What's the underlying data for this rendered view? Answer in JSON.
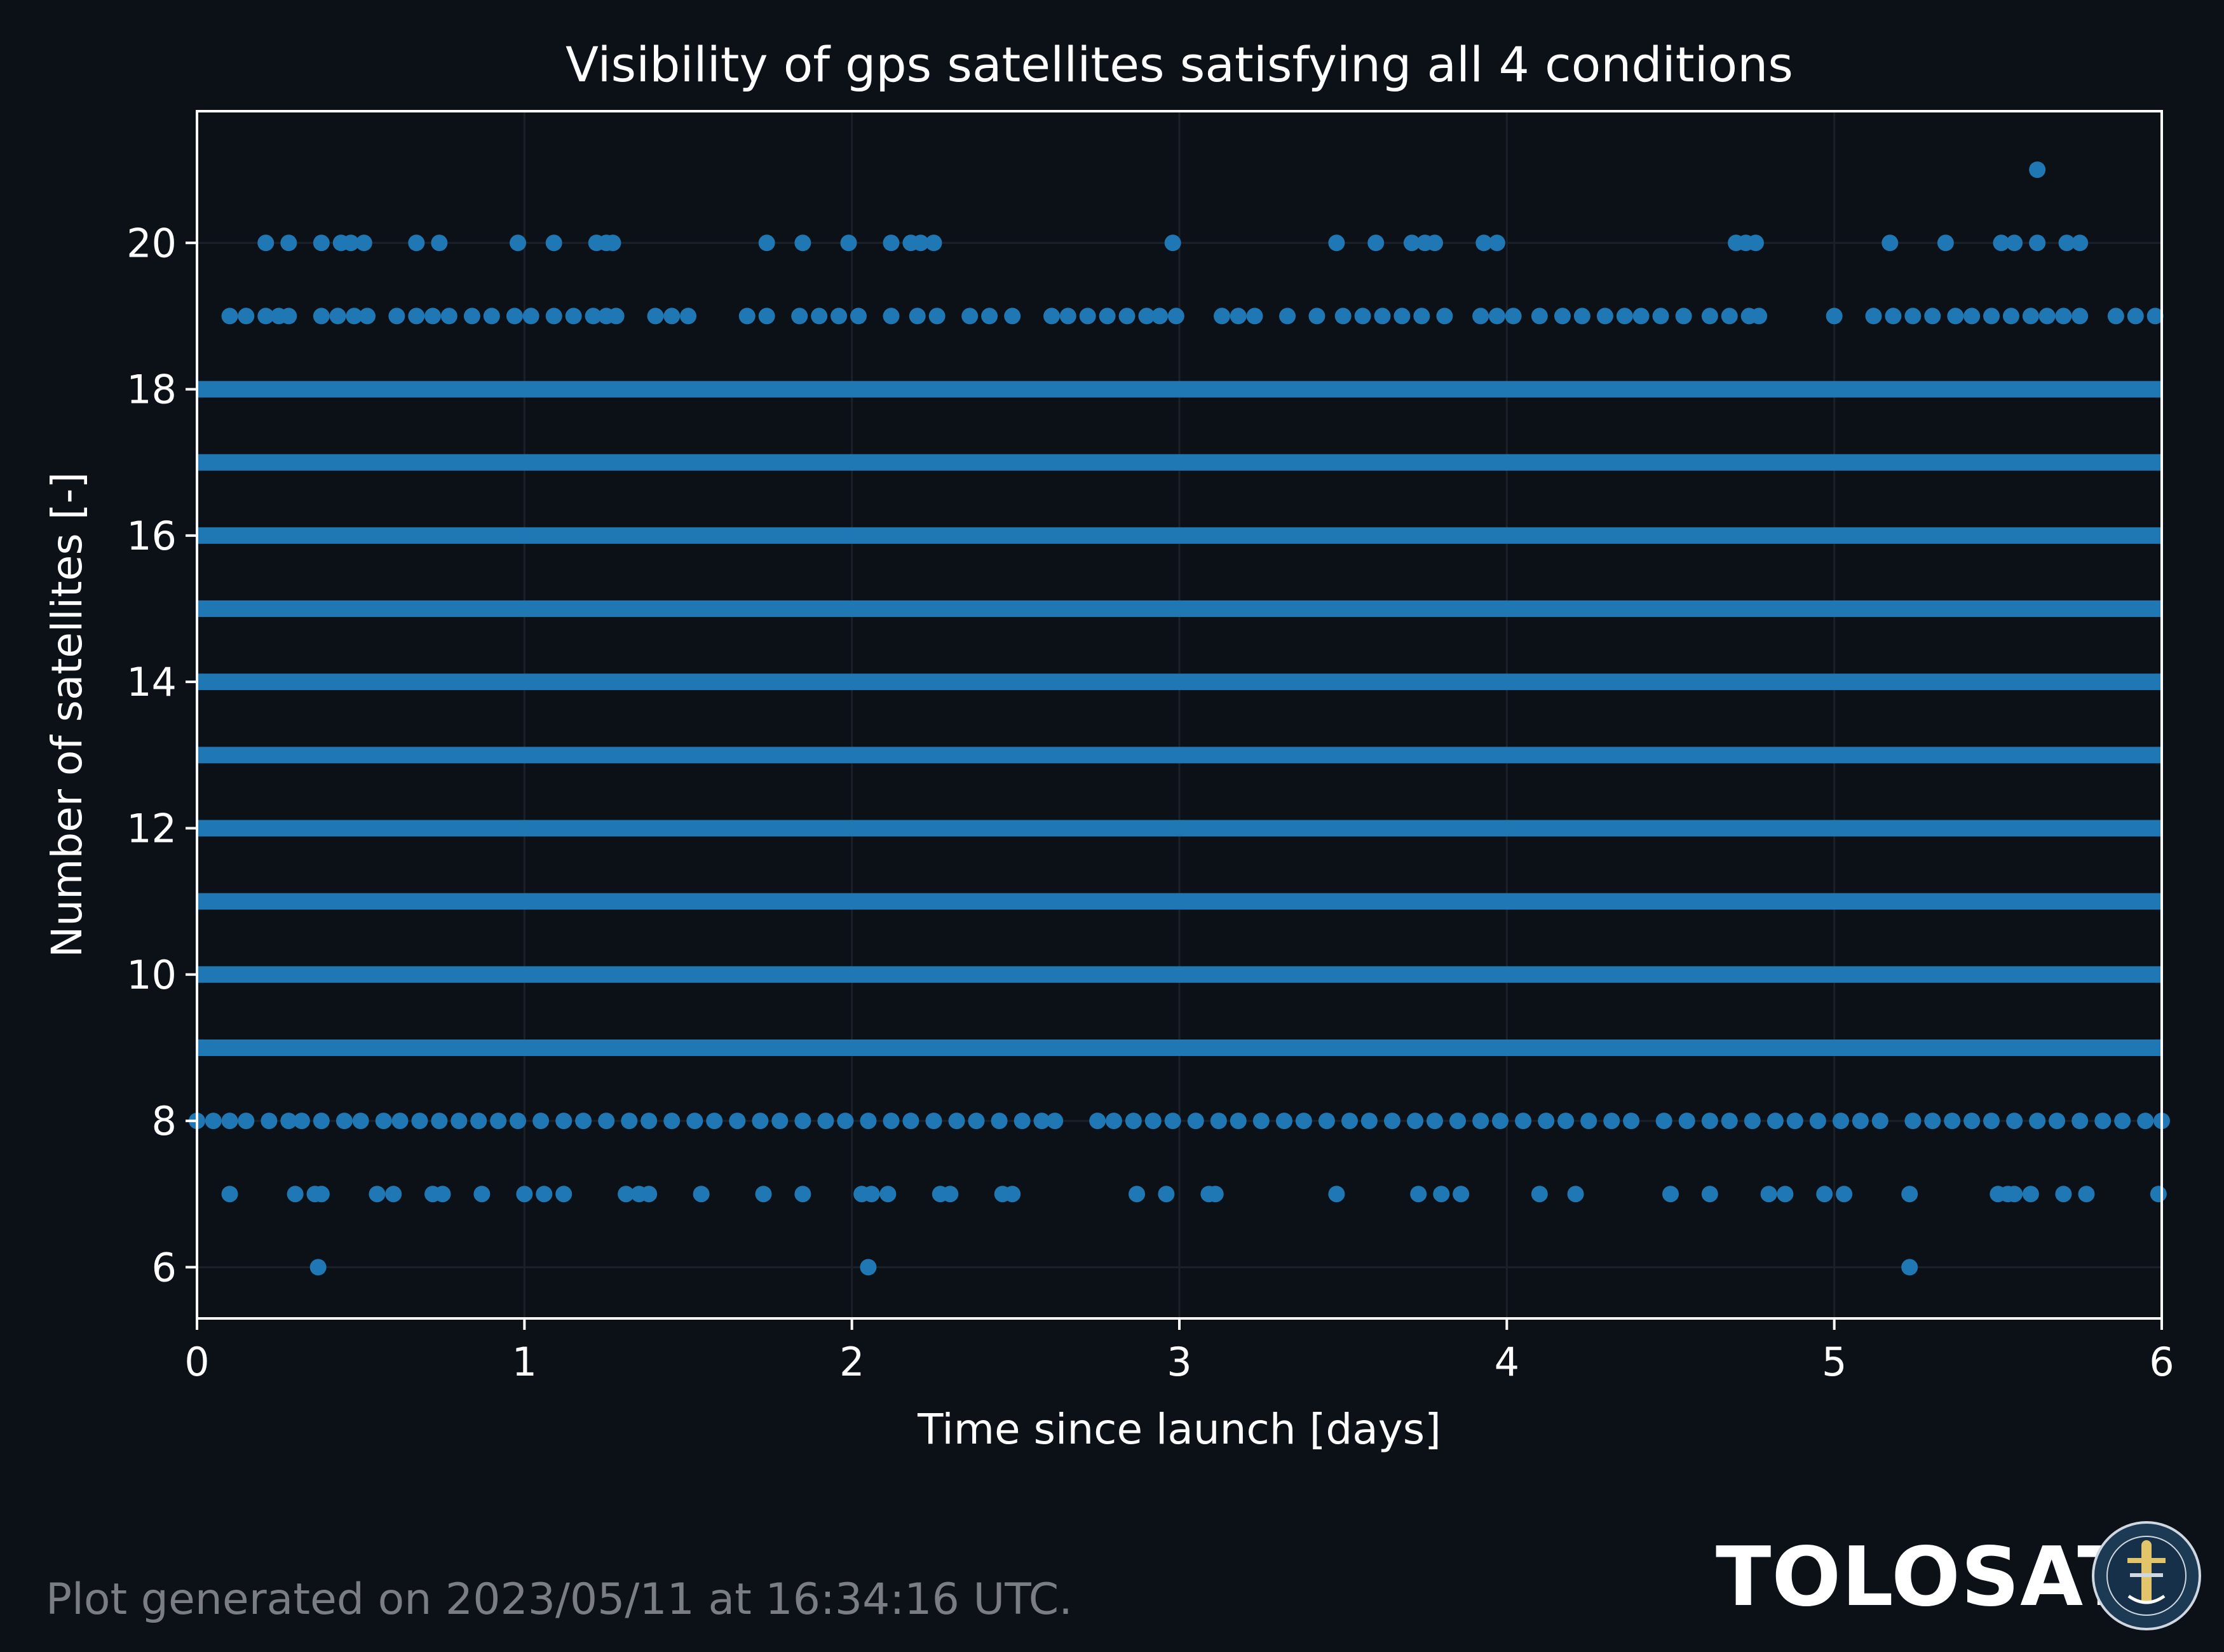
{
  "colors": {
    "background": "#0c1017",
    "marker": "#1f77b4",
    "axes": "#ffffff",
    "grid": "#1c2129",
    "footer": "#7a7d82"
  },
  "footer": {
    "text": "Plot generated on 2023/05/11 at 16:34:16 UTC."
  },
  "logo": {
    "text": "TOLOSAT",
    "seal_text": "ASTRE CC SUPAERO TOLOSAT",
    "seal_icon": "satellite-seal-icon"
  },
  "chart_data": {
    "type": "scatter",
    "title": "Visibility of gps satellites satisfying all 4 conditions",
    "xlabel": "Time since launch [days]",
    "ylabel": "Number of satellites [-]",
    "xlim": [
      0,
      6
    ],
    "ylim": [
      5.3,
      21.8
    ],
    "xticks": [
      0,
      1,
      2,
      3,
      4,
      5,
      6
    ],
    "yticks": [
      6,
      8,
      10,
      12,
      14,
      16,
      18,
      20
    ],
    "grid": true,
    "continuous_levels": [
      9,
      10,
      11,
      12,
      13,
      14,
      15,
      16,
      17,
      18
    ],
    "series": [
      {
        "values_note": "",
        "points": [
          [
            0.37,
            6
          ],
          [
            2.05,
            6
          ],
          [
            5.23,
            6
          ],
          [
            0.1,
            7
          ],
          [
            0.3,
            7
          ],
          [
            0.36,
            7
          ],
          [
            0.38,
            7
          ],
          [
            0.55,
            7
          ],
          [
            0.6,
            7
          ],
          [
            0.72,
            7
          ],
          [
            0.75,
            7
          ],
          [
            0.87,
            7
          ],
          [
            1.0,
            7
          ],
          [
            1.06,
            7
          ],
          [
            1.12,
            7
          ],
          [
            1.31,
            7
          ],
          [
            1.35,
            7
          ],
          [
            1.38,
            7
          ],
          [
            1.54,
            7
          ],
          [
            1.73,
            7
          ],
          [
            1.85,
            7
          ],
          [
            2.03,
            7
          ],
          [
            2.06,
            7
          ],
          [
            2.11,
            7
          ],
          [
            2.27,
            7
          ],
          [
            2.3,
            7
          ],
          [
            2.46,
            7
          ],
          [
            2.49,
            7
          ],
          [
            2.87,
            7
          ],
          [
            2.96,
            7
          ],
          [
            3.09,
            7
          ],
          [
            3.11,
            7
          ],
          [
            3.48,
            7
          ],
          [
            3.73,
            7
          ],
          [
            3.8,
            7
          ],
          [
            3.86,
            7
          ],
          [
            4.1,
            7
          ],
          [
            4.21,
            7
          ],
          [
            4.5,
            7
          ],
          [
            4.62,
            7
          ],
          [
            4.8,
            7
          ],
          [
            4.85,
            7
          ],
          [
            4.97,
            7
          ],
          [
            5.03,
            7
          ],
          [
            5.23,
            7
          ],
          [
            5.5,
            7
          ],
          [
            5.53,
            7
          ],
          [
            5.55,
            7
          ],
          [
            5.6,
            7
          ],
          [
            5.7,
            7
          ],
          [
            5.77,
            7
          ],
          [
            5.99,
            7
          ],
          [
            0.0,
            8
          ],
          [
            0.05,
            8
          ],
          [
            0.1,
            8
          ],
          [
            0.15,
            8
          ],
          [
            0.22,
            8
          ],
          [
            0.28,
            8
          ],
          [
            0.32,
            8
          ],
          [
            0.38,
            8
          ],
          [
            0.45,
            8
          ],
          [
            0.5,
            8
          ],
          [
            0.57,
            8
          ],
          [
            0.62,
            8
          ],
          [
            0.68,
            8
          ],
          [
            0.74,
            8
          ],
          [
            0.8,
            8
          ],
          [
            0.86,
            8
          ],
          [
            0.92,
            8
          ],
          [
            0.98,
            8
          ],
          [
            1.05,
            8
          ],
          [
            1.12,
            8
          ],
          [
            1.18,
            8
          ],
          [
            1.25,
            8
          ],
          [
            1.32,
            8
          ],
          [
            1.38,
            8
          ],
          [
            1.45,
            8
          ],
          [
            1.52,
            8
          ],
          [
            1.58,
            8
          ],
          [
            1.65,
            8
          ],
          [
            1.72,
            8
          ],
          [
            1.78,
            8
          ],
          [
            1.85,
            8
          ],
          [
            1.92,
            8
          ],
          [
            1.98,
            8
          ],
          [
            2.05,
            8
          ],
          [
            2.12,
            8
          ],
          [
            2.18,
            8
          ],
          [
            2.25,
            8
          ],
          [
            2.32,
            8
          ],
          [
            2.38,
            8
          ],
          [
            2.45,
            8
          ],
          [
            2.52,
            8
          ],
          [
            2.58,
            8
          ],
          [
            2.62,
            8
          ],
          [
            2.75,
            8
          ],
          [
            2.8,
            8
          ],
          [
            2.86,
            8
          ],
          [
            2.92,
            8
          ],
          [
            2.98,
            8
          ],
          [
            3.05,
            8
          ],
          [
            3.12,
            8
          ],
          [
            3.18,
            8
          ],
          [
            3.25,
            8
          ],
          [
            3.32,
            8
          ],
          [
            3.38,
            8
          ],
          [
            3.45,
            8
          ],
          [
            3.52,
            8
          ],
          [
            3.58,
            8
          ],
          [
            3.65,
            8
          ],
          [
            3.72,
            8
          ],
          [
            3.78,
            8
          ],
          [
            3.85,
            8
          ],
          [
            3.92,
            8
          ],
          [
            3.98,
            8
          ],
          [
            4.05,
            8
          ],
          [
            4.12,
            8
          ],
          [
            4.18,
            8
          ],
          [
            4.25,
            8
          ],
          [
            4.32,
            8
          ],
          [
            4.38,
            8
          ],
          [
            4.48,
            8
          ],
          [
            4.55,
            8
          ],
          [
            4.62,
            8
          ],
          [
            4.68,
            8
          ],
          [
            4.75,
            8
          ],
          [
            4.82,
            8
          ],
          [
            4.88,
            8
          ],
          [
            4.95,
            8
          ],
          [
            5.02,
            8
          ],
          [
            5.08,
            8
          ],
          [
            5.14,
            8
          ],
          [
            5.24,
            8
          ],
          [
            5.3,
            8
          ],
          [
            5.36,
            8
          ],
          [
            5.42,
            8
          ],
          [
            5.48,
            8
          ],
          [
            5.55,
            8
          ],
          [
            5.62,
            8
          ],
          [
            5.68,
            8
          ],
          [
            5.75,
            8
          ],
          [
            5.82,
            8
          ],
          [
            5.88,
            8
          ],
          [
            5.95,
            8
          ],
          [
            6.0,
            8
          ],
          [
            0.1,
            19
          ],
          [
            0.15,
            19
          ],
          [
            0.21,
            19
          ],
          [
            0.25,
            19
          ],
          [
            0.28,
            19
          ],
          [
            0.38,
            19
          ],
          [
            0.43,
            19
          ],
          [
            0.48,
            19
          ],
          [
            0.52,
            19
          ],
          [
            0.61,
            19
          ],
          [
            0.67,
            19
          ],
          [
            0.72,
            19
          ],
          [
            0.77,
            19
          ],
          [
            0.84,
            19
          ],
          [
            0.9,
            19
          ],
          [
            0.97,
            19
          ],
          [
            1.02,
            19
          ],
          [
            1.09,
            19
          ],
          [
            1.15,
            19
          ],
          [
            1.21,
            19
          ],
          [
            1.25,
            19
          ],
          [
            1.28,
            19
          ],
          [
            1.4,
            19
          ],
          [
            1.45,
            19
          ],
          [
            1.5,
            19
          ],
          [
            1.68,
            19
          ],
          [
            1.74,
            19
          ],
          [
            1.84,
            19
          ],
          [
            1.9,
            19
          ],
          [
            1.96,
            19
          ],
          [
            2.02,
            19
          ],
          [
            2.12,
            19
          ],
          [
            2.2,
            19
          ],
          [
            2.26,
            19
          ],
          [
            2.36,
            19
          ],
          [
            2.42,
            19
          ],
          [
            2.49,
            19
          ],
          [
            2.61,
            19
          ],
          [
            2.66,
            19
          ],
          [
            2.72,
            19
          ],
          [
            2.78,
            19
          ],
          [
            2.84,
            19
          ],
          [
            2.9,
            19
          ],
          [
            2.94,
            19
          ],
          [
            2.99,
            19
          ],
          [
            3.13,
            19
          ],
          [
            3.18,
            19
          ],
          [
            3.23,
            19
          ],
          [
            3.33,
            19
          ],
          [
            3.42,
            19
          ],
          [
            3.5,
            19
          ],
          [
            3.56,
            19
          ],
          [
            3.62,
            19
          ],
          [
            3.68,
            19
          ],
          [
            3.74,
            19
          ],
          [
            3.81,
            19
          ],
          [
            3.92,
            19
          ],
          [
            3.97,
            19
          ],
          [
            4.02,
            19
          ],
          [
            4.1,
            19
          ],
          [
            4.17,
            19
          ],
          [
            4.23,
            19
          ],
          [
            4.3,
            19
          ],
          [
            4.36,
            19
          ],
          [
            4.41,
            19
          ],
          [
            4.47,
            19
          ],
          [
            4.54,
            19
          ],
          [
            4.62,
            19
          ],
          [
            4.68,
            19
          ],
          [
            4.74,
            19
          ],
          [
            4.77,
            19
          ],
          [
            5.0,
            19
          ],
          [
            5.12,
            19
          ],
          [
            5.18,
            19
          ],
          [
            5.24,
            19
          ],
          [
            5.3,
            19
          ],
          [
            5.37,
            19
          ],
          [
            5.42,
            19
          ],
          [
            5.48,
            19
          ],
          [
            5.54,
            19
          ],
          [
            5.6,
            19
          ],
          [
            5.65,
            19
          ],
          [
            5.7,
            19
          ],
          [
            5.75,
            19
          ],
          [
            5.86,
            19
          ],
          [
            5.92,
            19
          ],
          [
            5.98,
            19
          ],
          [
            0.21,
            20
          ],
          [
            0.28,
            20
          ],
          [
            0.38,
            20
          ],
          [
            0.44,
            20
          ],
          [
            0.47,
            20
          ],
          [
            0.51,
            20
          ],
          [
            0.67,
            20
          ],
          [
            0.74,
            20
          ],
          [
            0.98,
            20
          ],
          [
            1.09,
            20
          ],
          [
            1.22,
            20
          ],
          [
            1.25,
            20
          ],
          [
            1.27,
            20
          ],
          [
            1.74,
            20
          ],
          [
            1.85,
            20
          ],
          [
            1.99,
            20
          ],
          [
            2.12,
            20
          ],
          [
            2.18,
            20
          ],
          [
            2.21,
            20
          ],
          [
            2.25,
            20
          ],
          [
            2.98,
            20
          ],
          [
            3.48,
            20
          ],
          [
            3.6,
            20
          ],
          [
            3.71,
            20
          ],
          [
            3.75,
            20
          ],
          [
            3.78,
            20
          ],
          [
            3.93,
            20
          ],
          [
            3.97,
            20
          ],
          [
            4.7,
            20
          ],
          [
            4.73,
            20
          ],
          [
            4.76,
            20
          ],
          [
            5.17,
            20
          ],
          [
            5.34,
            20
          ],
          [
            5.51,
            20
          ],
          [
            5.55,
            20
          ],
          [
            5.62,
            20
          ],
          [
            5.71,
            20
          ],
          [
            5.75,
            20
          ],
          [
            5.62,
            21
          ]
        ]
      }
    ]
  }
}
